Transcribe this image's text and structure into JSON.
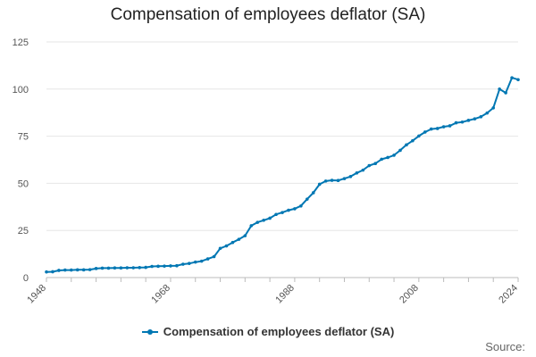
{
  "chart_data": {
    "type": "line",
    "title": "Compensation of employees deflator (SA)",
    "xlabel": "",
    "ylabel": "",
    "xlim": [
      1948,
      2024
    ],
    "ylim": [
      0,
      125
    ],
    "yticks": [
      0,
      25,
      50,
      75,
      100,
      125
    ],
    "xticks": [
      1948,
      1968,
      1988,
      2008,
      2024
    ],
    "grid": true,
    "legend_position": "bottom",
    "colors": {
      "series": "#0077b3",
      "grid": "#e6e6e6",
      "axis": "#bbbbbb"
    },
    "series": [
      {
        "name": "Compensation of employees deflator (SA)",
        "x": [
          1948,
          1949,
          1950,
          1951,
          1952,
          1953,
          1954,
          1955,
          1956,
          1957,
          1958,
          1959,
          1960,
          1961,
          1962,
          1963,
          1964,
          1965,
          1966,
          1967,
          1968,
          1969,
          1970,
          1971,
          1972,
          1973,
          1974,
          1975,
          1976,
          1977,
          1978,
          1979,
          1980,
          1981,
          1982,
          1983,
          1984,
          1985,
          1986,
          1987,
          1988,
          1989,
          1990,
          1991,
          1992,
          1993,
          1994,
          1995,
          1996,
          1997,
          1998,
          1999,
          2000,
          2001,
          2002,
          2003,
          2004,
          2005,
          2006,
          2007,
          2008,
          2009,
          2010,
          2011,
          2012,
          2013,
          2014,
          2015,
          2016,
          2017,
          2018,
          2019,
          2020,
          2021,
          2022,
          2023,
          2024
        ],
        "values": [
          3.0,
          3.1,
          3.8,
          4.0,
          4.0,
          4.1,
          4.1,
          4.2,
          4.8,
          5.0,
          5.0,
          5.1,
          5.1,
          5.2,
          5.2,
          5.3,
          5.4,
          5.9,
          6.0,
          6.1,
          6.2,
          6.3,
          7.1,
          7.5,
          8.2,
          8.7,
          9.9,
          11.1,
          15.5,
          16.8,
          18.6,
          20.3,
          22.2,
          27.5,
          29.3,
          30.4,
          31.5,
          33.5,
          34.5,
          35.7,
          36.5,
          38.0,
          41.6,
          45.0,
          49.5,
          51.2,
          51.6,
          51.5,
          52.5,
          53.6,
          55.5,
          57.0,
          59.4,
          60.5,
          62.8,
          63.7,
          64.9,
          67.5,
          70.4,
          72.6,
          75.1,
          77.2,
          78.8,
          79.1,
          80.0,
          80.5,
          82.1,
          82.5,
          83.4,
          84.2,
          85.3,
          87.3,
          90.0,
          100.0,
          98.0,
          106.0,
          105.0
        ]
      }
    ]
  },
  "legend": {
    "label": "Compensation of employees deflator (SA)"
  },
  "footer": {
    "source_label": "Source:"
  }
}
